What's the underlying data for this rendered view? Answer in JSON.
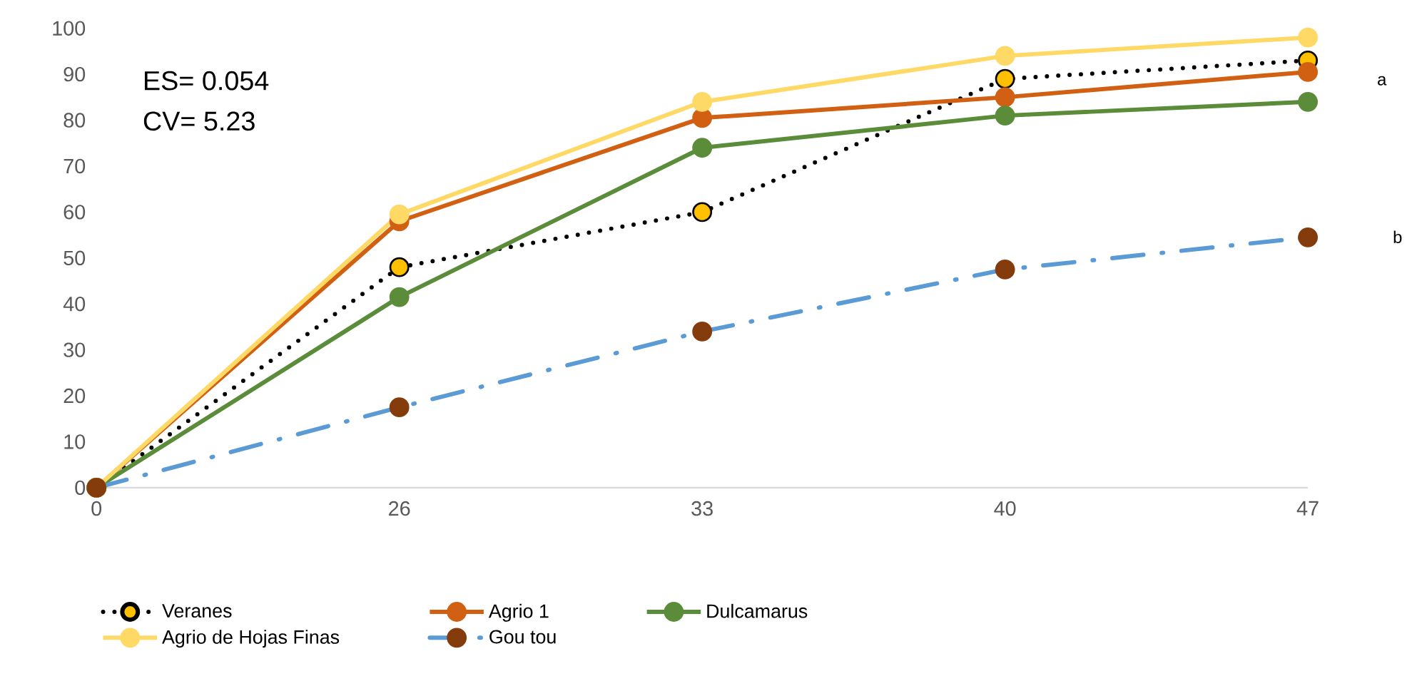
{
  "chart_data": {
    "type": "line",
    "categories": [
      "0",
      "26",
      "33",
      "40",
      "47"
    ],
    "ylim": [
      0,
      100
    ],
    "yticks": [
      0,
      10,
      20,
      30,
      40,
      50,
      60,
      70,
      80,
      90,
      100
    ],
    "grid": false,
    "legend": "bottom",
    "marker": "circle",
    "series": [
      {
        "name": "Veranes",
        "color": "#000000",
        "colors": [
          "#ffc000",
          "#ffc000",
          "#ffc000",
          "#ffc000",
          "#ffc000"
        ],
        "line_style": "dotted",
        "values": [
          0,
          48,
          60,
          89,
          93
        ]
      },
      {
        "name": "Agrio 1",
        "color": "#d26012",
        "line_style": "solid",
        "values": [
          0,
          58,
          80.5,
          85,
          90.5
        ]
      },
      {
        "name": "Dulcamarus",
        "color": "#5b8c3a",
        "line_style": "solid",
        "values": [
          0,
          41.5,
          74,
          81,
          84
        ]
      },
      {
        "name": "Agrio de Hojas Finas",
        "color": "#ffd966",
        "line_style": "solid",
        "values": [
          0,
          59.5,
          84,
          94,
          98
        ]
      },
      {
        "name": "Gou tou",
        "color": "#5b9bd5",
        "colors": [
          "#843c0c",
          "#843c0c",
          "#843c0c",
          "#843c0c",
          "#843c0c"
        ],
        "line_style": "dashdot",
        "values": [
          0,
          17.5,
          34,
          47.5,
          54.5
        ]
      }
    ],
    "annotations": [
      "ES= 0.054",
      "CV= 5.23",
      "a",
      "b"
    ]
  }
}
